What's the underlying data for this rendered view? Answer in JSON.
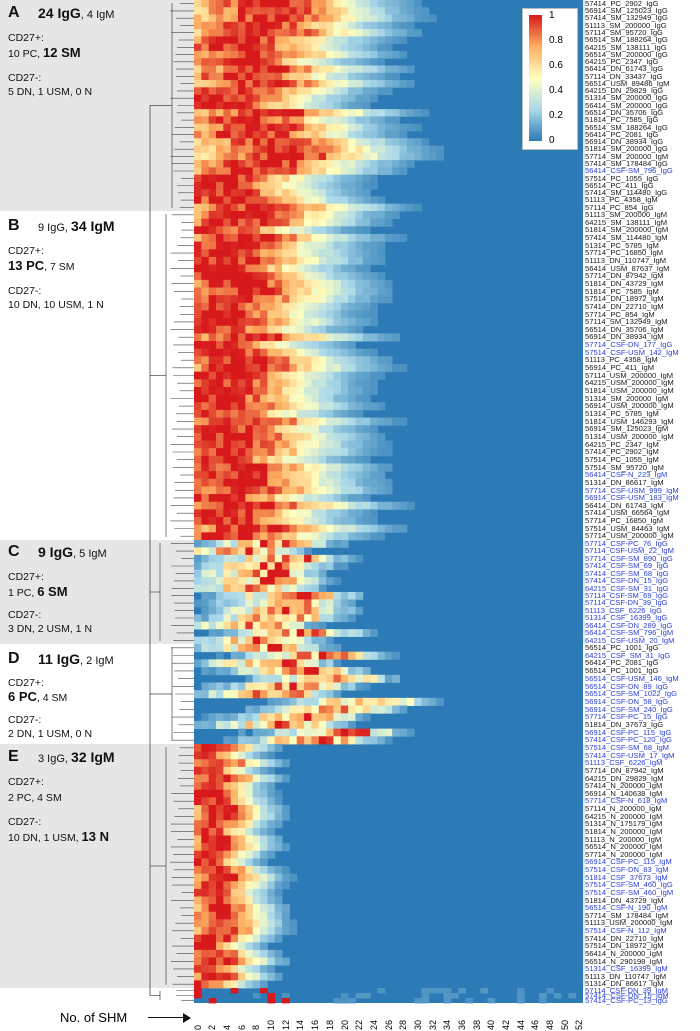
{
  "chart_data": {
    "type": "heatmap",
    "xlabel": "No. of SHM",
    "x_ticks": [
      0,
      2,
      4,
      6,
      8,
      10,
      12,
      14,
      16,
      18,
      20,
      22,
      24,
      26,
      28,
      30,
      32,
      34,
      36,
      38,
      40,
      42,
      44,
      46,
      48,
      50,
      52
    ],
    "colorbar": {
      "min": 0,
      "max": 1,
      "ticks": [
        "1",
        "0.8",
        "0.6",
        "0.4",
        "0.2",
        "0"
      ],
      "colors": [
        "#2c7bb6",
        "#abd9e9",
        "#ffffbf",
        "#fdae61",
        "#d7191c"
      ]
    },
    "grid": false,
    "panels": [
      {
        "letter": "A",
        "igg": "24 IgG",
        "igm": "4 IgM",
        "bold": "igg",
        "cd27pos_label": "CD27+:",
        "cd27pos": "10 PC, ",
        "cd27pos_bold": "12 SM",
        "cd27neg_label": "CD27-:",
        "cd27neg": "5 DN, 1 USM, 0 N",
        "cd27neg_bold": ""
      },
      {
        "letter": "B",
        "igg": "9 IgG",
        "igm": "34 IgM",
        "bold": "igm",
        "cd27pos_label": "CD27+:",
        "cd27pos_bold_first": "13 PC",
        "cd27pos": ", 7 SM",
        "cd27neg_label": "CD27-:",
        "cd27neg": "10 DN, 10 USM, 1 N",
        "cd27neg_bold": ""
      },
      {
        "letter": "C",
        "igg": "9 IgG",
        "igm": "5 IgM",
        "bold": "igg",
        "cd27pos_label": "CD27+:",
        "cd27pos": "1 PC, ",
        "cd27pos_bold": "6 SM",
        "cd27neg_label": "CD27-:",
        "cd27neg": "3 DN, 2 USM, 1 N",
        "cd27neg_bold": ""
      },
      {
        "letter": "D",
        "igg": "11 IgG",
        "igm": "2 IgM",
        "bold": "igg",
        "cd27pos_label": "CD27+:",
        "cd27pos_bold_first": "6 PC",
        "cd27pos": ", 4 SM",
        "cd27neg_label": "CD27-:",
        "cd27neg": "2 DN, 1 USM, 0 N",
        "cd27neg_bold": ""
      },
      {
        "letter": "E",
        "igg": "3 IgG",
        "igm": "32 IgM",
        "bold": "igm",
        "cd27pos_label": "CD27+:",
        "cd27pos": "2 PC, 4 SM",
        "cd27pos_bold": "",
        "cd27neg_label": "CD27-:",
        "cd27neg": "10 DN, 1 USM, ",
        "cd27neg_bold": "13 N"
      }
    ],
    "groups": [
      {
        "id": "A",
        "peak": [
          2,
          12
        ],
        "rows": [
          [
            "57414_PC_2902_IgG",
            0
          ],
          [
            "56914_SM_125023_IgG",
            0
          ],
          [
            "57414_SM_132949_IgG",
            0
          ],
          [
            "51113_SM_200000_IgG",
            0
          ],
          [
            "57114_SM_95720_IgG",
            0
          ],
          [
            "56514_SM_188264_IgG",
            0
          ],
          [
            "64215_SM_138111_IgG",
            0
          ],
          [
            "56514_SM_200000_IgG",
            0
          ],
          [
            "64215_PC_2347_IgG",
            0
          ],
          [
            "56414_DN_61743_IgG",
            0
          ],
          [
            "57114_DN_33437_IgG",
            0
          ],
          [
            "56514_USM_89486_IgM",
            0
          ],
          [
            "64215_DN_29829_IgG",
            0
          ],
          [
            "51314_SM_200000_IgG",
            0
          ],
          [
            "56414_SM_200000_IgG",
            0
          ],
          [
            "56514_DN_35706_IgG",
            0
          ],
          [
            "51814_PC_7585_IgG",
            0
          ],
          [
            "56514_SM_188264_IgG",
            0
          ],
          [
            "56414_PC_2081_IgG",
            0
          ],
          [
            "56914_DN_38934_IgG",
            0
          ],
          [
            "51814_SM_200000_IgG",
            0
          ],
          [
            "57714_SM_200000_IgM",
            0
          ],
          [
            "57414_SM_178484_IgG",
            0
          ],
          [
            "56414_CSF-SM_796_IgG",
            1
          ],
          [
            "57514_PC_1055_IgG",
            0
          ],
          [
            "56514_PC_411_IgG",
            0
          ],
          [
            "57414_SM_114480_IgG",
            0
          ],
          [
            "51113_PC_4358_IgM",
            0
          ],
          [
            "57114_PC_854_IgG",
            0
          ]
        ]
      },
      {
        "id": "B",
        "peak": [
          1,
          8
        ],
        "rows": [
          [
            "51113_SM_200000_IgM",
            0
          ],
          [
            "64215_SM_138111_IgM",
            0
          ],
          [
            "51814_SM_200000_IgM",
            0
          ],
          [
            "57414_SM_114480_IgM",
            0
          ],
          [
            "51314_PC_5785_IgM",
            0
          ],
          [
            "57714_PC_16850_IgM",
            0
          ],
          [
            "51113_DN_110747_IgM",
            0
          ],
          [
            "56414_USM_87637_IgM",
            0
          ],
          [
            "57714_DN_87942_IgM",
            0
          ],
          [
            "51814_DN_43729_IgM",
            0
          ],
          [
            "51814_PC_7585_IgM",
            0
          ],
          [
            "57514_DN_18972_IgM",
            0
          ],
          [
            "57414_DN_22710_IgM",
            0
          ],
          [
            "57714_PC_854_IgM",
            0
          ],
          [
            "57114_SM_132949_IgM",
            0
          ],
          [
            "56514_DN_35706_IgM",
            0
          ],
          [
            "56914_DN_38934_IgM",
            0
          ],
          [
            "57714_CSF-DN_177_IgG",
            1
          ],
          [
            "57514_CSF-USM_142_IgM",
            1
          ],
          [
            "51113_PC_4358_IgM",
            0
          ],
          [
            "56914_PC_411_IgM",
            0
          ],
          [
            "57114_USM_200000_IgM",
            0
          ],
          [
            "64215_USM_200000_IgM",
            0
          ],
          [
            "51814_USM_200000_IgM",
            0
          ],
          [
            "51314_SM_200000_IgM",
            0
          ],
          [
            "56914_USM_200000_IgM",
            0
          ],
          [
            "51314_PC_5785_IgM",
            0
          ],
          [
            "51814_USM_146293_IgM",
            0
          ],
          [
            "56914_SM_125023_IgM",
            0
          ],
          [
            "51314_USM_200000_IgM",
            0
          ],
          [
            "64215_PC_2347_IgM",
            0
          ],
          [
            "57414_PC_2902_IgM",
            0
          ],
          [
            "57514_PC_1055_IgM",
            0
          ],
          [
            "57514_SM_95720_IgM",
            0
          ],
          [
            "56414_CSF-N_223_IgM",
            1
          ],
          [
            "51314_DN_86617_IgM",
            0
          ],
          [
            "57714_CSF-USM_999_IgM",
            1
          ],
          [
            "56914_CSF-USM_183_IgM",
            1
          ],
          [
            "56414_DN_61743_IgM",
            0
          ],
          [
            "57414_USM_66564_IgM",
            0
          ],
          [
            "57714_PC_16850_IgM",
            0
          ],
          [
            "57514_USM_84463_IgM",
            0
          ],
          [
            "57714_USM_200000_IgM",
            0
          ]
        ]
      },
      {
        "id": "C",
        "peak": [
          6,
          16
        ],
        "rows": [
          [
            "57714_CSF-PC_76_IgG",
            1
          ],
          [
            "57114_CSF-USM_22_IgM",
            1
          ],
          [
            "57714_CSF-SM_890_IgG",
            1
          ],
          [
            "57414_CSF-SM_69_IgG",
            1
          ],
          [
            "57414_CSF-SM_68_IgG",
            1
          ],
          [
            "57414_CSF-DN_15_IgG",
            1
          ],
          [
            "64215_CSF-SM_31_IgG",
            1
          ],
          [
            "57114_CSF-SM_69_IgG",
            1
          ],
          [
            "57114_CSF-DN_39_IgG",
            1
          ],
          [
            "51113_CSF_6226_IgG",
            1
          ],
          [
            "51314_CSF_16399_IgG",
            1
          ],
          [
            "56414_CSF-DN_289_IgG",
            1
          ],
          [
            "56414_CSF-SM_796_IgM",
            1
          ],
          [
            "64215_CSF-USM_20_IgM",
            1
          ]
        ]
      },
      {
        "id": "D",
        "peak": [
          10,
          24
        ],
        "rows": [
          [
            "56514_PC_1001_IgG",
            0
          ],
          [
            "64215_CSF_SM_31_IgG",
            1
          ],
          [
            "56414_PC_2081_IgG",
            0
          ],
          [
            "56514_PC_1001_IgG",
            0
          ],
          [
            "56514_CSF-USM_146_IgM",
            1
          ],
          [
            "56514_CSF-DN_89_IgG",
            1
          ],
          [
            "56514_CSF-SM_1022_IgG",
            1
          ],
          [
            "56914_CSF-DN_58_IgG",
            1
          ],
          [
            "56914_CSF-SM_240_IgG",
            1
          ],
          [
            "57714_CSF-PC_15_IgG",
            1
          ],
          [
            "51814_DN_37673_IgG",
            0
          ],
          [
            "56914_CSF-PC_115_IgG",
            1
          ],
          [
            "57414_CSF-PC_120_IgG",
            1
          ]
        ]
      },
      {
        "id": "E",
        "peak": [
          0,
          4
        ],
        "rows": [
          [
            "57514_CSF-SM_68_IgM",
            1
          ],
          [
            "57414_CSF-USM_17_IgM",
            1
          ],
          [
            "51113_CSF_6226_IgM",
            1
          ],
          [
            "57714_DN_87942_IgM",
            0
          ],
          [
            "64215_DN_29829_IgM",
            0
          ],
          [
            "57414_N_200000_IgM",
            0
          ],
          [
            "56914_N_140638_IgM",
            0
          ],
          [
            "57714_CSF-N_618_IgM",
            1
          ],
          [
            "57114_N_200000_IgM",
            0
          ],
          [
            "64215_N_200000_IgM",
            0
          ],
          [
            "51314_N_175179_IgM",
            0
          ],
          [
            "51814_N_200000_IgM",
            0
          ],
          [
            "51113_N_200000_IgM",
            0
          ],
          [
            "56514_N_200000_IgM",
            0
          ],
          [
            "57714_N_200000_IgM",
            0
          ],
          [
            "56914_CSF-PC_115_IgM",
            1
          ],
          [
            "57514_CSF-DN_83_IgM",
            1
          ],
          [
            "51814_CSF_37673_IgM",
            1
          ],
          [
            "57514_CSF-SM_460_IgG",
            1
          ],
          [
            "57514_CSF-SM_460_IgM",
            1
          ],
          [
            "51814_DN_43729_IgM",
            0
          ],
          [
            "56514_CSF-N_190_IgM",
            1
          ],
          [
            "57714_SM_178484_IgM",
            0
          ],
          [
            "51113_USM_200000_IgM",
            0
          ],
          [
            "57514_CSF-N_112_IgM",
            1
          ],
          [
            "57414_DN_22710_IgM",
            0
          ],
          [
            "57514_DN_18972_IgM",
            0
          ],
          [
            "56414_N_200000_IgM",
            0
          ],
          [
            "56514_N_290198_IgM",
            0
          ],
          [
            "51314_CSF_16399_IgM",
            1
          ],
          [
            "51113_DN_110747_IgM",
            0
          ],
          [
            "51314_DN_86617_IgM",
            0
          ]
        ]
      },
      {
        "id": "F",
        "peak": [
          0,
          20
        ],
        "rows": [
          [
            "57114_CSF-DN_39_IgM",
            1
          ],
          [
            "57414_CSF-DN_15_IgM",
            1
          ],
          [
            "57414_CSF-PC_13_IgG",
            1
          ]
        ]
      }
    ]
  }
}
